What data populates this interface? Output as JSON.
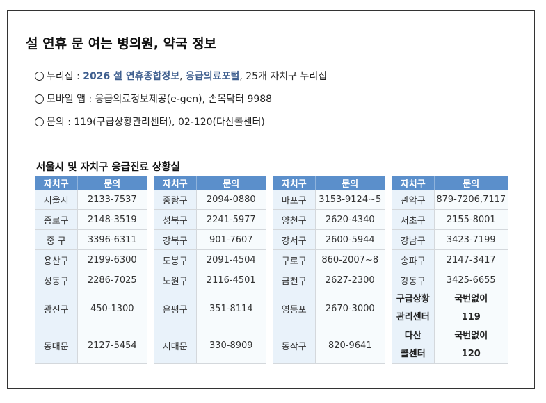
{
  "title": "설 연휴 문 여는 병의원, 약국 정보",
  "info": {
    "line1": {
      "label": "누리집 : ",
      "link1": "2026 설 연휴종합정보",
      "sep": ", ",
      "link2": "응급의료포털",
      "rest": ", 25개 자치구 누리집"
    },
    "line2": "모바일 앱 : 응급의료정보제공(e-gen), 손목닥터 9988",
    "line3": "문의 : 119(구급상황관리센터), 02-120(다산콜센터)"
  },
  "section_title": "서울시 및 자치구 응급진료 상황실",
  "headers": [
    "자치구",
    "문의"
  ],
  "tables": [
    {
      "rows": [
        [
          "서울시",
          "2133-7537"
        ],
        [
          "종로구",
          "2148-3519"
        ],
        [
          "중 구",
          "3396-6311"
        ],
        [
          "용산구",
          "2199-6300"
        ],
        [
          "성동구",
          "2286-7025"
        ],
        [
          "광진구",
          "450-1300"
        ],
        [
          "동대문",
          "2127-5454"
        ]
      ]
    },
    {
      "rows": [
        [
          "중랑구",
          "2094-0880"
        ],
        [
          "성북구",
          "2241-5977"
        ],
        [
          "강북구",
          "901-7607"
        ],
        [
          "도봉구",
          "2091-4504"
        ],
        [
          "노원구",
          "2116-4501"
        ],
        [
          "은평구",
          "351-8114"
        ],
        [
          "서대문",
          "330-8909"
        ]
      ]
    },
    {
      "rows": [
        [
          "마포구",
          "3153-9124~5"
        ],
        [
          "양천구",
          "2620-4340"
        ],
        [
          "강서구",
          "2600-5944"
        ],
        [
          "구로구",
          "860-2007~8"
        ],
        [
          "금천구",
          "2627-2300"
        ],
        [
          "영등포",
          "2670-3000"
        ],
        [
          "동작구",
          "820-9641"
        ]
      ]
    },
    {
      "rows": [
        [
          "관악구",
          "879-7206,7117"
        ],
        [
          "서초구",
          "2155-8001"
        ],
        [
          "강남구",
          "3423-7199"
        ],
        [
          "송파구",
          "2147-3417"
        ],
        [
          "강동구",
          "3425-6655"
        ]
      ],
      "special": [
        {
          "name1": "구급상황",
          "name2": "관리센터",
          "val1": "국번없이",
          "val2": "119"
        },
        {
          "name1": "다산",
          "name2": "콜센터",
          "val1": "국번없이",
          "val2": "120"
        }
      ]
    }
  ],
  "colors": {
    "header_bg": "#5b8fcb",
    "link": "#3f5f8f"
  }
}
